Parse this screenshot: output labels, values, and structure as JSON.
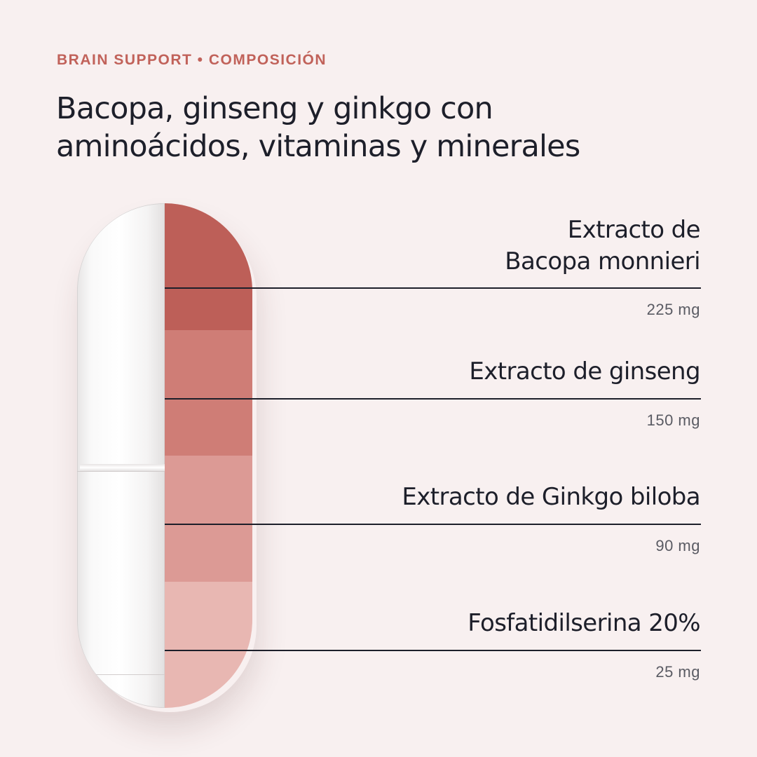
{
  "eyebrow": "BRAIN SUPPORT • COMPOSICIÓN",
  "headline": {
    "line1": "Bacopa, ginseng y ginkgo con",
    "line2": "aminoácidos, vitaminas y minerales"
  },
  "colors": {
    "background": "#f8f0f0",
    "accent": "#c1625a",
    "band_1": "#bd5f58",
    "band_2": "#cf7d76",
    "band_3": "#dc9a95",
    "band_4": "#e8b7b2"
  },
  "ingredients": [
    {
      "name_line1": "Extracto de",
      "name_line2": "Bacopa monnieri",
      "dose": "225 mg"
    },
    {
      "name_line1": "Extracto de ginseng",
      "dose": "150 mg"
    },
    {
      "name_line1": "Extracto de Ginkgo biloba",
      "dose": "90 mg"
    },
    {
      "name_line1": "Fosfatidilserina 20%",
      "dose": "25 mg"
    }
  ]
}
